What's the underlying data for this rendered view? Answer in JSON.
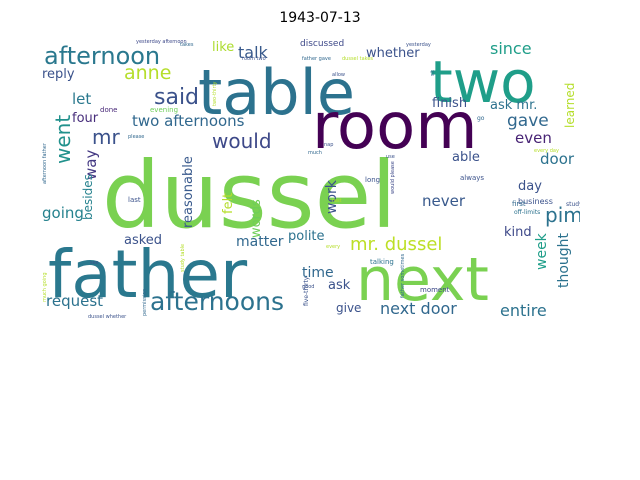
{
  "title": "1943-07-13",
  "words": [
    {
      "text": "dussel",
      "color": "#7ad151"
    },
    {
      "text": "father",
      "color": "#2a788e"
    },
    {
      "text": "table",
      "color": "#2c728e"
    },
    {
      "text": "room",
      "color": "#440154"
    },
    {
      "text": "two",
      "color": "#1f9e89"
    },
    {
      "text": "next",
      "color": "#7ad151"
    },
    {
      "text": "afternoons",
      "color": "#2c728e"
    },
    {
      "text": "afternoon",
      "color": "#2a788e"
    },
    {
      "text": "said",
      "color": "#3b528b"
    },
    {
      "text": "anne",
      "color": "#b5de2b"
    },
    {
      "text": "went",
      "color": "#21918c"
    },
    {
      "text": "mr",
      "color": "#3b528b"
    },
    {
      "text": "would",
      "color": "#3e4989"
    },
    {
      "text": "pim",
      "color": "#2c728e"
    },
    {
      "text": "two afternoons",
      "color": "#31688e"
    },
    {
      "text": "mr. dussel",
      "color": "#bddf26"
    },
    {
      "text": "talk",
      "color": "#38598c"
    },
    {
      "text": "whether",
      "color": "#3b528b"
    },
    {
      "text": "since",
      "color": "#1f9e89"
    },
    {
      "text": "gave",
      "color": "#31688e"
    },
    {
      "text": "even",
      "color": "#482475"
    },
    {
      "text": "let",
      "color": "#2a788e"
    },
    {
      "text": "four",
      "color": "#472d7b"
    },
    {
      "text": "way",
      "color": "#443983"
    },
    {
      "text": "going",
      "color": "#26828e"
    },
    {
      "text": "reply",
      "color": "#3b528b"
    },
    {
      "text": "like",
      "color": "#addc30"
    },
    {
      "text": "finish",
      "color": "#3b528b"
    },
    {
      "text": "ask mr.",
      "color": "#2c728e"
    },
    {
      "text": "learned",
      "color": "#b5de2b"
    },
    {
      "text": "already",
      "color": "#31688e"
    },
    {
      "text": "able",
      "color": "#3b528b"
    },
    {
      "text": "door",
      "color": "#2c728e"
    },
    {
      "text": "reasonable",
      "color": "#38598c"
    },
    {
      "text": "felt",
      "color": "#b5de2b"
    },
    {
      "text": "work",
      "color": "#3b528b"
    },
    {
      "text": "words",
      "color": "#6ece58"
    },
    {
      "text": "never",
      "color": "#38598c"
    },
    {
      "text": "besides",
      "color": "#26828e"
    },
    {
      "text": "day",
      "color": "#3b528b"
    },
    {
      "text": "week",
      "color": "#1f9e89"
    },
    {
      "text": "thought",
      "color": "#2c728e"
    },
    {
      "text": "matter",
      "color": "#31688e"
    },
    {
      "text": "polite",
      "color": "#2c728e"
    },
    {
      "text": "kind",
      "color": "#3e4989"
    },
    {
      "text": "asked",
      "color": "#3b528b"
    },
    {
      "text": "impossible",
      "color": "#35b779"
    },
    {
      "text": "time",
      "color": "#31688e"
    },
    {
      "text": "ask",
      "color": "#3b528b"
    },
    {
      "text": "request",
      "color": "#2c728e"
    },
    {
      "text": "next door",
      "color": "#31688e"
    },
    {
      "text": "entire",
      "color": "#2c728e"
    },
    {
      "text": "give",
      "color": "#3b528b"
    },
    {
      "text": "discussed",
      "color": "#3e4989"
    },
    {
      "text": "evening",
      "color": "#6ece58"
    },
    {
      "text": "done",
      "color": "#482878"
    },
    {
      "text": "last",
      "color": "#3b528b"
    },
    {
      "text": "long",
      "color": "#3b528b"
    },
    {
      "text": "business",
      "color": "#3b528b"
    },
    {
      "text": "first",
      "color": "#31688e"
    },
    {
      "text": "study",
      "color": "#3b528b"
    },
    {
      "text": "off-limits",
      "color": "#2c728e"
    },
    {
      "text": "moment",
      "color": "#3e4989"
    },
    {
      "text": "always",
      "color": "#3b528b"
    },
    {
      "text": "talking",
      "color": "#2c728e"
    },
    {
      "text": "every day",
      "color": "#b5de2b"
    },
    {
      "text": "yesterday afternoon",
      "color": "#3e4989"
    },
    {
      "text": "takes",
      "color": "#31688e"
    },
    {
      "text": "room two",
      "color": "#3b528b"
    },
    {
      "text": "father gave",
      "color": "#31688e"
    },
    {
      "text": "dussel takes",
      "color": "#b5de2b"
    },
    {
      "text": "yesterday",
      "color": "#3b528b"
    },
    {
      "text": "want",
      "color": "#3e4989"
    },
    {
      "text": "allow",
      "color": "#3b528b"
    },
    {
      "text": "sit",
      "color": "#31688e"
    },
    {
      "text": "two-thirty",
      "color": "#b5de2b"
    },
    {
      "text": "go",
      "color": "#31688e"
    },
    {
      "text": "please",
      "color": "#31688e"
    },
    {
      "text": "much",
      "color": "#31688e"
    },
    {
      "text": "nap",
      "color": "#3b528b"
    },
    {
      "text": "use",
      "color": "#3b528b"
    },
    {
      "text": "rest",
      "color": "#b5de2b"
    },
    {
      "text": "would please",
      "color": "#3e4989"
    },
    {
      "text": "afternoon father",
      "color": "#31688e"
    },
    {
      "text": "five-thirty",
      "color": "#3b528b"
    },
    {
      "text": "father sometimes",
      "color": "#31688e"
    },
    {
      "text": "study table",
      "color": "#b5de2b"
    },
    {
      "text": "permission",
      "color": "#31688e"
    },
    {
      "text": "good",
      "color": "#3b528b"
    },
    {
      "text": "see",
      "color": "#3b528b"
    },
    {
      "text": "every",
      "color": "#b5de2b"
    },
    {
      "text": "much going",
      "color": "#b5de2b"
    },
    {
      "text": "dussel whether",
      "color": "#3b528b"
    }
  ]
}
